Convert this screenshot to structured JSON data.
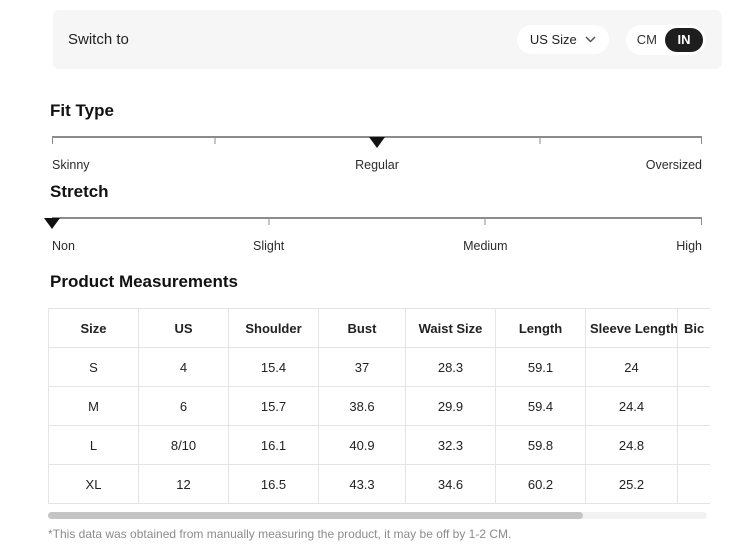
{
  "topbar": {
    "switch_label": "Switch to",
    "size_selector": {
      "value": "US Size"
    },
    "unit_toggle": {
      "options": [
        "CM",
        "IN"
      ],
      "selected": "IN"
    }
  },
  "fit_type": {
    "title": "Fit Type",
    "labels": [
      "Skinny",
      "Regular",
      "Oversized"
    ],
    "selected": "Regular",
    "marker_position_pct": 50,
    "tick_positions_pct": [
      0,
      25,
      50,
      75,
      100
    ]
  },
  "stretch": {
    "title": "Stretch",
    "labels": [
      "Non",
      "Slight",
      "Medium",
      "High"
    ],
    "selected": "Non",
    "marker_position_pct": 0,
    "tick_positions_pct": [
      0,
      33.333,
      66.667,
      100
    ]
  },
  "measurements": {
    "title": "Product Measurements",
    "columns": [
      "Size",
      "US",
      "Shoulder",
      "Bust",
      "Waist Size",
      "Length",
      "Sleeve Length",
      "Bic"
    ],
    "rows": [
      [
        "S",
        "4",
        "15.4",
        "37",
        "28.3",
        "59.1",
        "24",
        ""
      ],
      [
        "M",
        "6",
        "15.7",
        "38.6",
        "29.9",
        "59.4",
        "24.4",
        ""
      ],
      [
        "L",
        "8/10",
        "16.1",
        "40.9",
        "32.3",
        "59.8",
        "24.8",
        ""
      ],
      [
        "XL",
        "12",
        "16.5",
        "43.3",
        "34.6",
        "60.2",
        "25.2",
        ""
      ]
    ],
    "footnote": "*This data was obtained from manually measuring the product, it may be off by 1-2 CM."
  },
  "colors": {
    "topbar_bg": "#f6f6f6",
    "toggle_selected_bg": "#1e1e1e",
    "toggle_selected_text": "#ffffff",
    "slider_line": "#8c8c8c",
    "marker": "#111111",
    "table_border": "#e4e4e4",
    "footnote_text": "#8c8c8c",
    "scroll_thumb": "#c4c4c4"
  }
}
